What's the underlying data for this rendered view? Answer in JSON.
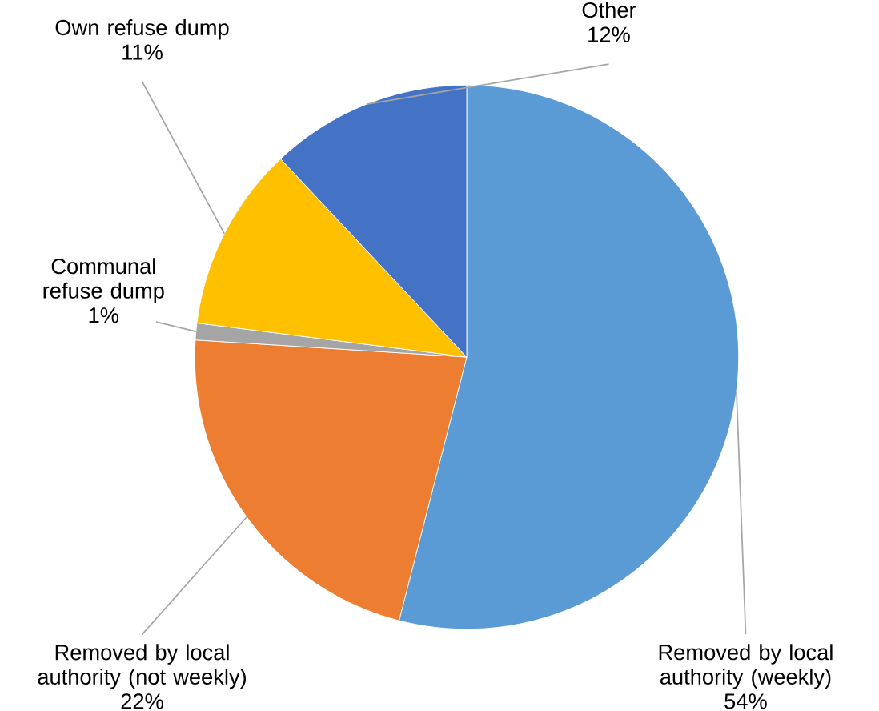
{
  "chart_data": {
    "type": "pie",
    "categories": [
      "Removed by local authority (weekly)",
      "Removed by local authority (not weekly)",
      "Communal refuse dump",
      "Own refuse dump",
      "Other"
    ],
    "values": [
      54,
      22,
      1,
      11,
      12
    ],
    "value_labels": [
      "54%",
      "22%",
      "1%",
      "11%",
      "12%"
    ],
    "colors": [
      "#5b9bd5",
      "#ed7d31",
      "#a5a5a5",
      "#ffc000",
      "#4472c4"
    ]
  }
}
